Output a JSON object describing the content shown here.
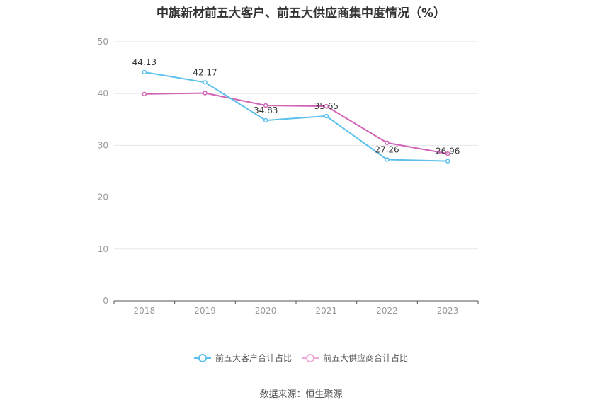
{
  "chart_data": {
    "type": "line",
    "title": "中旗新材前五大客户、前五大供应商集中度情况（%）",
    "categories": [
      "2018",
      "2019",
      "2020",
      "2021",
      "2022",
      "2023"
    ],
    "series": [
      {
        "name": "前五大客户合计占比",
        "color": "#5bc0eb",
        "values": [
          44.13,
          42.17,
          34.83,
          35.65,
          27.26,
          26.96
        ]
      },
      {
        "name": "前五大供应商合计占比",
        "color": "#d264b6",
        "values": [
          39.9,
          40.1,
          37.7,
          37.55,
          30.5,
          28.4
        ]
      }
    ],
    "data_labels": [
      "44.13",
      "42.17",
      "34.83",
      "35.65",
      "27.26",
      "26.96"
    ],
    "yticks": [
      "0",
      "10",
      "20",
      "30",
      "40",
      "50"
    ],
    "ylim": [
      0,
      50
    ],
    "grid": true,
    "legend_position": "bottom-center"
  },
  "source": "数据来源：恒生聚源"
}
